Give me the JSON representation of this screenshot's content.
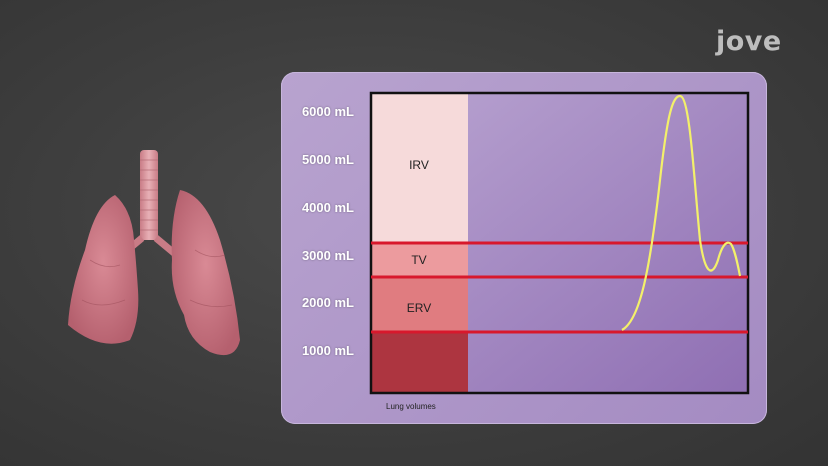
{
  "brand": {
    "logo_text": "jove"
  },
  "chart_data": {
    "type": "diagram",
    "title": "",
    "caption": "Lung volumes",
    "y_ticks": [
      "6000 mL",
      "5000 mL",
      "4000 mL",
      "3000 mL",
      "2000 mL",
      "1000 mL"
    ],
    "segments": [
      {
        "name": "IRV",
        "color": "#f6dada"
      },
      {
        "name": "TV",
        "color": "#ec9b9e"
      },
      {
        "name": "ERV",
        "color": "#e07c80"
      },
      {
        "name": "",
        "color": "#ad3540"
      }
    ],
    "boundary_color": "#d8182c",
    "curve_color": "#f3f06a"
  }
}
